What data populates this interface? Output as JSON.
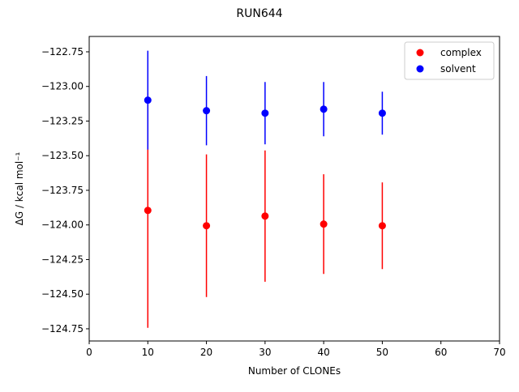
{
  "chart_data": {
    "type": "errorbar",
    "title": "RUN644",
    "x_label": "Number of CLONEs",
    "y_label": "ΔG / kcal mol⁻¹",
    "xlim": [
      0,
      70
    ],
    "xticks": [
      0,
      10,
      20,
      30,
      40,
      50,
      60,
      70
    ],
    "ylim": [
      -124.838,
      -122.639
    ],
    "yticks": [
      {
        "value": -122.75,
        "label": "−122.75"
      },
      {
        "value": -123.0,
        "label": "−123.00"
      },
      {
        "value": -123.25,
        "label": "−123.25"
      },
      {
        "value": -123.5,
        "label": "−123.50"
      },
      {
        "value": -123.75,
        "label": "−123.75"
      },
      {
        "value": -124.0,
        "label": "−124.00"
      },
      {
        "value": -124.25,
        "label": "−124.25"
      },
      {
        "value": -124.5,
        "label": "−124.50"
      },
      {
        "value": -124.75,
        "label": "−124.75"
      }
    ],
    "legend": "upper right",
    "series": [
      {
        "name": "complex",
        "color": "#ff0000",
        "x": [
          10,
          20,
          30,
          40,
          50
        ],
        "values": [
          -123.895,
          -124.006,
          -123.936,
          -123.994,
          -124.006
        ],
        "errors": [
          0.848,
          0.515,
          0.474,
          0.36,
          0.313
        ]
      },
      {
        "name": "solvent",
        "color": "#0000ff",
        "x": [
          10,
          20,
          30,
          40,
          50
        ],
        "values": [
          -123.099,
          -123.175,
          -123.193,
          -123.164,
          -123.193
        ],
        "errors": [
          0.357,
          0.25,
          0.225,
          0.196,
          0.155
        ]
      }
    ]
  }
}
